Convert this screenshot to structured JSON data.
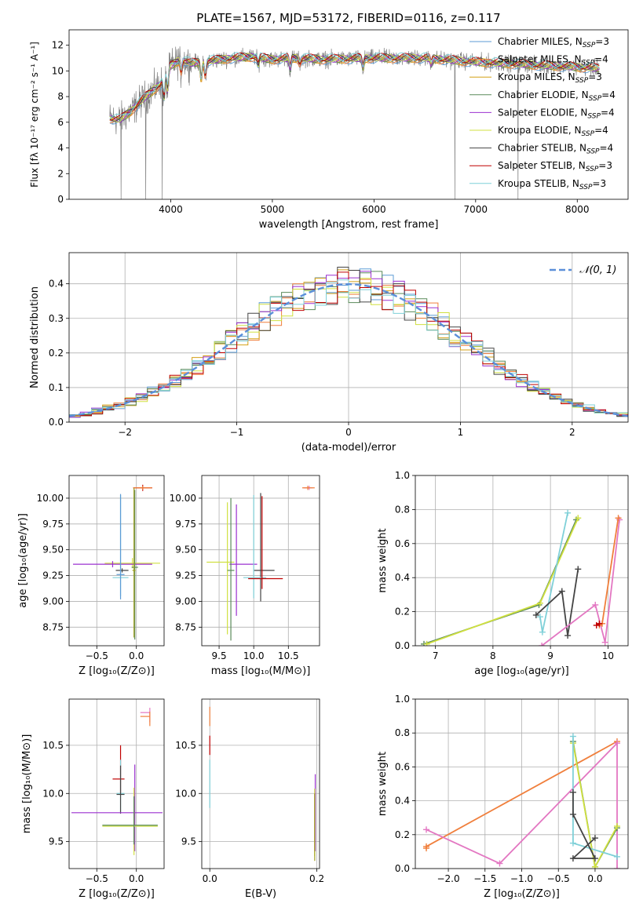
{
  "figure": {
    "title": "PLATE=1567, MJD=53172, FIBERID=0116, z=0.117"
  },
  "colors": {
    "chabrier_miles": "#5b9bd5",
    "salpeter_miles": "#f07f3c",
    "kroupa_miles": "#d4a017",
    "chabrier_elodie": "#5a8a5a",
    "salpeter_elodie": "#9b30d0",
    "kroupa_elodie": "#d0e040",
    "chabrier_stelib": "#444444",
    "salpeter_stelib": "#c00000",
    "kroupa_stelib": "#7fd0d8",
    "gauss": "#5b8fd9",
    "pink": "#e377c2",
    "olive": "#a0a020"
  },
  "chart_data": [
    {
      "id": "spectrum",
      "type": "line",
      "title": "PLATE=1567, MJD=53172, FIBERID=0116, z=0.117",
      "xlabel": "wavelength [Angstrom, rest frame]",
      "ylabel": "Flux [fλ 10⁻¹⁷ erg cm⁻² s⁻¹ A⁻¹]",
      "xlim": [
        3000,
        8500
      ],
      "ylim": [
        0,
        13.2
      ],
      "xticks": [
        "4000",
        "5000",
        "6000",
        "7000",
        "8000"
      ],
      "yticks": [
        "0",
        "2",
        "4",
        "6",
        "8",
        "10",
        "12"
      ],
      "grid": false,
      "legend_position": "top-right",
      "legend": [
        {
          "label": "Chabrier MILES, N",
          "sub": "SSP",
          "suffix": "=3",
          "color": "#5b9bd5"
        },
        {
          "label": "Salpeter MILES, N",
          "sub": "SSP",
          "suffix": "=4",
          "color": "#f07f3c"
        },
        {
          "label": "Kroupa MILES, N",
          "sub": "SSP",
          "suffix": "=3",
          "color": "#d4a017"
        },
        {
          "label": "Chabrier ELODIE, N",
          "sub": "SSP",
          "suffix": "=4",
          "color": "#5a8a5a"
        },
        {
          "label": "Salpeter ELODIE, N",
          "sub": "SSP",
          "suffix": "=4",
          "color": "#9b30d0"
        },
        {
          "label": "Kroupa ELODIE, N",
          "sub": "SSP",
          "suffix": "=4",
          "color": "#d0e040"
        },
        {
          "label": "Chabrier STELIB, N",
          "sub": "SSP",
          "suffix": "=4",
          "color": "#444444"
        },
        {
          "label": "Salpeter STELIB, N",
          "sub": "SSP",
          "suffix": "=3",
          "color": "#c00000"
        },
        {
          "label": "Kroupa STELIB, N",
          "sub": "SSP",
          "suffix": "=3",
          "color": "#7fd0d8"
        }
      ],
      "continuum": {
        "x": [
          3400,
          3500,
          3600,
          3700,
          3800,
          3900,
          4000,
          4100,
          4200,
          4400,
          4600,
          4800,
          5000,
          5200,
          5500,
          6000,
          6500,
          7000,
          7500,
          8000,
          8200
        ],
        "y": [
          6.3,
          6.2,
          6.8,
          7.6,
          8.3,
          9.0,
          10.4,
          10.9,
          10.6,
          10.8,
          11.0,
          11.1,
          10.9,
          11.0,
          10.9,
          11.0,
          11.0,
          10.7,
          10.5,
          10.3,
          10.2
        ]
      },
      "absorption_features": [
        {
          "x": 3934,
          "depth": 1.8
        },
        {
          "x": 3969,
          "depth": 1.6
        },
        {
          "x": 4102,
          "depth": 1.0
        },
        {
          "x": 4300,
          "depth": 1.5
        },
        {
          "x": 4340,
          "depth": 1.2
        },
        {
          "x": 4861,
          "depth": 0.6
        },
        {
          "x": 5175,
          "depth": 0.9
        },
        {
          "x": 5270,
          "depth": 0.4
        },
        {
          "x": 5892,
          "depth": 0.8
        },
        {
          "x": 6563,
          "depth": 0.5
        }
      ],
      "data_drops": [
        3512,
        3755,
        3915,
        6795,
        7418
      ]
    },
    {
      "id": "residuals",
      "type": "line",
      "xlabel": "(data-model)/error",
      "ylabel": "Normed distribution",
      "xlim": [
        -2.5,
        2.5
      ],
      "ylim": [
        0,
        0.49
      ],
      "xticks": [
        "−2",
        "−1",
        "0",
        "1",
        "2"
      ],
      "xtick_values": [
        -2,
        -1,
        0,
        1,
        2
      ],
      "yticks": [
        "0.0",
        "0.1",
        "0.2",
        "0.3",
        "0.4"
      ],
      "ytick_values": [
        0,
        0.1,
        0.2,
        0.3,
        0.4
      ],
      "grid": true,
      "legend_position": "top-right",
      "gauss_label": "𝒩(0, 1)",
      "bin_width": 0.1
    },
    {
      "id": "age_vs_Z",
      "type": "scatter",
      "xlabel": "Z [log₁₀(Z/Z⊙)]",
      "ylabel": "age  [log₁₀(age/yr)]",
      "xlim": [
        -0.85,
        0.35
      ],
      "ylim": [
        8.57,
        10.22
      ],
      "xticks": [
        "−0.5",
        "0.0"
      ],
      "xtick_values": [
        -0.5,
        0.0
      ],
      "yticks": [
        "8.75",
        "9.00",
        "9.25",
        "9.50",
        "9.75",
        "10.00"
      ],
      "ytick_values": [
        8.75,
        9.0,
        9.25,
        9.5,
        9.75,
        10.0
      ],
      "grid": true,
      "errorbars": [
        {
          "x": 0.08,
          "y": 10.1,
          "xerr": [
            0.12,
            0.12
          ],
          "yerr": [
            0.03,
            0.03
          ],
          "color": "#c00000"
        },
        {
          "x": 0.08,
          "y": 10.1,
          "xerr": [
            0.12,
            0.12
          ],
          "yerr": [
            0.02,
            0.02
          ],
          "color": "#f07f3c"
        },
        {
          "x": -0.05,
          "y": 9.37,
          "xerr": [
            0.35,
            0.35
          ],
          "yerr": [
            0.05,
            0.05
          ],
          "color": "#d0e040"
        },
        {
          "x": -0.3,
          "y": 9.36,
          "xerr": [
            0.5,
            0.5
          ],
          "yerr": [
            0.03,
            0.03
          ],
          "color": "#9b30d0"
        },
        {
          "x": -0.18,
          "y": 9.3,
          "xerr": [
            0.08,
            0.08
          ],
          "yerr": [
            0.02,
            0.02
          ],
          "color": "#444444"
        },
        {
          "x": -0.2,
          "y": 9.23,
          "xerr": [
            0.1,
            0.1
          ],
          "yerr": [
            0.18,
            0.8
          ],
          "color": "#7fd0d8"
        },
        {
          "x": -0.2,
          "y": 9.26,
          "xerr": [
            0.05,
            0.05
          ],
          "yerr": [
            0.24,
            0.78
          ],
          "color": "#5b9bd5"
        },
        {
          "x": -0.02,
          "y": 9.33,
          "xerr": [
            0.04,
            0.04
          ],
          "yerr": [
            0.7,
            0.75
          ],
          "color": "#5a8a5a"
        },
        {
          "x": -0.03,
          "y": 9.3,
          "xerr": [
            0.02,
            0.02
          ],
          "yerr": [
            0.65,
            0.8
          ],
          "color": "#a0a020"
        }
      ]
    },
    {
      "id": "age_vs_mass",
      "type": "scatter",
      "xlabel": "mass [log₁₀(M/M⊙)]",
      "ylabel": "",
      "xlim": [
        9.25,
        10.95
      ],
      "ylim": [
        8.57,
        10.22
      ],
      "xticks": [
        "9.5",
        "10.0",
        "10.5"
      ],
      "xtick_values": [
        9.5,
        10.0,
        10.5
      ],
      "yticks": [
        "8.75",
        "9.00",
        "9.25",
        "9.50",
        "9.75",
        "10.00"
      ],
      "ytick_values": [
        8.75,
        9.0,
        9.25,
        9.5,
        9.75,
        10.0
      ],
      "grid": true,
      "errorbars": [
        {
          "x": 10.8,
          "y": 10.1,
          "xerr": [
            0.08,
            0.05
          ],
          "yerr": [
            0.02,
            0.02
          ],
          "color": "#e377c2"
        },
        {
          "x": 10.78,
          "y": 10.1,
          "xerr": [
            0.08,
            0.1
          ],
          "yerr": [
            0.02,
            0.02
          ],
          "color": "#f07f3c"
        },
        {
          "x": 9.62,
          "y": 9.38,
          "xerr": [
            0.3,
            0.1
          ],
          "yerr": [
            0.7,
            0.58
          ],
          "color": "#d0e040"
        },
        {
          "x": 9.75,
          "y": 9.36,
          "xerr": [
            0.1,
            0.3
          ],
          "yerr": [
            0.5,
            0.58
          ],
          "color": "#9b30d0"
        },
        {
          "x": 10.1,
          "y": 9.3,
          "xerr": [
            0.1,
            0.2
          ],
          "yerr": [
            0.3,
            0.75
          ],
          "color": "#444444"
        },
        {
          "x": 10.0,
          "y": 9.23,
          "xerr": [
            0.15,
            0.18
          ],
          "yerr": [
            0.2,
            0.8
          ],
          "color": "#7fd0d8"
        },
        {
          "x": 10.12,
          "y": 9.22,
          "xerr": [
            0.2,
            0.3
          ],
          "yerr": [
            0.1,
            0.8
          ],
          "color": "#c00000"
        },
        {
          "x": 9.67,
          "y": 9.3,
          "xerr": [
            0.05,
            0.05
          ],
          "yerr": [
            0.68,
            0.7
          ],
          "color": "#5a8a5a"
        }
      ]
    },
    {
      "id": "massweight_vs_age",
      "type": "line",
      "xlabel": "age  [log₁₀(age/yr)]",
      "ylabel": "mass weight",
      "xlim": [
        6.65,
        10.35
      ],
      "ylim": [
        0,
        1.0
      ],
      "xticks": [
        "7",
        "8",
        "9",
        "10"
      ],
      "xtick_values": [
        7,
        8,
        9,
        10
      ],
      "yticks": [
        "0.0",
        "0.2",
        "0.4",
        "0.6",
        "0.8",
        "1.0"
      ],
      "ytick_values": [
        0,
        0.2,
        0.4,
        0.6,
        0.8,
        1.0
      ],
      "grid": true,
      "series": [
        {
          "color": "#5a8a5a",
          "x": [
            6.8,
            8.8,
            9.45
          ],
          "y": [
            0.01,
            0.24,
            0.74
          ]
        },
        {
          "color": "#d0e040",
          "x": [
            6.85,
            8.82,
            9.48
          ],
          "y": [
            0.01,
            0.25,
            0.75
          ]
        },
        {
          "color": "#7fd0d8",
          "x": [
            8.82,
            8.86,
            9.3
          ],
          "y": [
            0.17,
            0.08,
            0.78
          ]
        },
        {
          "color": "#444444",
          "x": [
            8.75,
            9.2,
            9.3,
            9.48
          ],
          "y": [
            0.18,
            0.32,
            0.06,
            0.45
          ]
        },
        {
          "color": "#e377c2",
          "x": [
            8.85,
            9.78,
            9.95,
            10.2
          ],
          "y": [
            0.0,
            0.24,
            0.02,
            0.74
          ]
        },
        {
          "color": "#f07f3c",
          "x": [
            9.85,
            9.9,
            10.18
          ],
          "y": [
            0.12,
            0.13,
            0.75
          ]
        },
        {
          "color": "#c00000",
          "x": [
            9.8,
            9.85
          ],
          "y": [
            0.12,
            0.13
          ]
        }
      ]
    },
    {
      "id": "mass_vs_Z",
      "type": "scatter",
      "xlabel": "Z [log₁₀(Z/Z⊙)]",
      "ylabel": "mass [log₁₀(M/M⊙)]",
      "xlim": [
        -0.85,
        0.35
      ],
      "ylim": [
        9.22,
        10.98
      ],
      "xticks": [
        "−0.5",
        "0.0"
      ],
      "xtick_values": [
        -0.5,
        0.0
      ],
      "yticks": [
        "9.5",
        "10.0",
        "10.5"
      ],
      "ytick_values": [
        9.5,
        10.0,
        10.5
      ],
      "grid": true,
      "errorbars": [
        {
          "x": 0.17,
          "y": 10.84,
          "xerr": [
            0.12,
            0.0
          ],
          "yerr": [
            0.1,
            0.05
          ],
          "color": "#e377c2"
        },
        {
          "x": 0.17,
          "y": 10.8,
          "xerr": [
            0.12,
            0.0
          ],
          "yerr": [
            0.1,
            0.05
          ],
          "color": "#f07f3c"
        },
        {
          "x": -0.2,
          "y": 10.15,
          "xerr": [
            0.1,
            0.05
          ],
          "yerr": [
            0.15,
            0.35
          ],
          "color": "#c00000"
        },
        {
          "x": -0.2,
          "y": 10.0,
          "xerr": [
            0.05,
            0.05
          ],
          "yerr": [
            0.2,
            0.35
          ],
          "color": "#7fd0d8"
        },
        {
          "x": -0.2,
          "y": 9.99,
          "xerr": [
            0.05,
            0.05
          ],
          "yerr": [
            0.2,
            0.3
          ],
          "color": "#444444"
        },
        {
          "x": -0.02,
          "y": 9.8,
          "xerr": [
            0.8,
            0.35
          ],
          "yerr": [
            0.4,
            0.5
          ],
          "color": "#9b30d0"
        },
        {
          "x": -0.03,
          "y": 9.66,
          "xerr": [
            0.4,
            0.3
          ],
          "yerr": [
            0.3,
            0.4
          ],
          "color": "#d0e040"
        },
        {
          "x": -0.03,
          "y": 9.67,
          "xerr": [
            0.4,
            0.3
          ],
          "yerr": [
            0.2,
            0.3
          ],
          "color": "#5a8a5a"
        }
      ]
    },
    {
      "id": "mass_vs_ebv",
      "type": "scatter",
      "xlabel": "E(B-V)",
      "ylabel": "",
      "xlim": [
        -0.015,
        0.205
      ],
      "ylim": [
        9.22,
        10.98
      ],
      "xticks": [
        "0.0",
        "0.2"
      ],
      "xtick_values": [
        0.0,
        0.2
      ],
      "yticks": [
        "9.5",
        "10.0",
        "10.5"
      ],
      "ytick_values": [
        9.5,
        10.0,
        10.5
      ],
      "grid": true,
      "errorbars": [
        {
          "x": 0.0,
          "y": 10.8,
          "xerr": [
            0,
            0
          ],
          "yerr": [
            0.1,
            0.1
          ],
          "color": "#f07f3c"
        },
        {
          "x": 0.0,
          "y": 10.5,
          "xerr": [
            0,
            0
          ],
          "yerr": [
            0.1,
            0.1
          ],
          "color": "#c00000"
        },
        {
          "x": 0.0,
          "y": 10.0,
          "xerr": [
            0,
            0
          ],
          "yerr": [
            0.15,
            0.35
          ],
          "color": "#7fd0d8"
        },
        {
          "x": 0.197,
          "y": 9.8,
          "xerr": [
            0,
            0
          ],
          "yerr": [
            0.4,
            0.4
          ],
          "color": "#9b30d0"
        },
        {
          "x": 0.196,
          "y": 9.65,
          "xerr": [
            0,
            0
          ],
          "yerr": [
            0.3,
            0.4
          ],
          "color": "#d0e040"
        },
        {
          "x": 0.196,
          "y": 9.6,
          "xerr": [
            0,
            0
          ],
          "yerr": [
            0.3,
            0.4
          ],
          "color": "#a0a020"
        }
      ]
    },
    {
      "id": "massweight_vs_Z",
      "type": "line",
      "xlabel": "Z [log₁₀(Z/Z⊙)]",
      "ylabel": "mass weight",
      "xlim": [
        -2.45,
        0.45
      ],
      "ylim": [
        0,
        1.0
      ],
      "xticks": [
        "−2.0",
        "−1.5",
        "−1.0",
        "−0.5",
        "0.0"
      ],
      "xtick_values": [
        -2.0,
        -1.5,
        -1.0,
        -0.5,
        0.0
      ],
      "yticks": [
        "0.0",
        "0.2",
        "0.4",
        "0.6",
        "0.8",
        "1.0"
      ],
      "ytick_values": [
        0,
        0.2,
        0.4,
        0.6,
        0.8,
        1.0
      ],
      "grid": true,
      "series": [
        {
          "color": "#f07f3c",
          "x": [
            -2.3,
            -2.3,
            0.3
          ],
          "y": [
            0.12,
            0.13,
            0.75
          ]
        },
        {
          "color": "#e377c2",
          "x": [
            -2.3,
            -1.3,
            0.3,
            0.3
          ],
          "y": [
            0.23,
            0.03,
            0.74,
            0.0
          ]
        },
        {
          "color": "#5a8a5a",
          "x": [
            -0.3,
            0.0,
            0.3
          ],
          "y": [
            0.75,
            0.01,
            0.24
          ]
        },
        {
          "color": "#d0e040",
          "x": [
            -0.3,
            0.0,
            0.3
          ],
          "y": [
            0.74,
            0.01,
            0.25
          ]
        },
        {
          "color": "#7fd0d8",
          "x": [
            -0.3,
            -0.3,
            0.3
          ],
          "y": [
            0.78,
            0.15,
            0.07
          ]
        },
        {
          "color": "#444444",
          "x": [
            -0.3,
            -0.3,
            0.0,
            -0.3,
            0.0
          ],
          "y": [
            0.45,
            0.32,
            0.06,
            0.06,
            0.18
          ]
        }
      ]
    }
  ]
}
